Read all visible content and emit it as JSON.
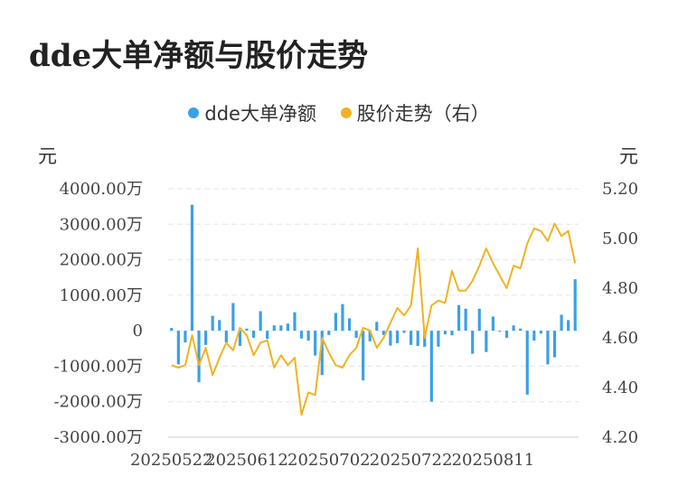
{
  "chart_data": {
    "type": "bar+line",
    "title": "dde大单净额与股价走势",
    "legend": [
      "dde大单净额",
      "股价走势（右）"
    ],
    "colors": {
      "bar": "#3ba0e6",
      "line": "#f0b323"
    },
    "left_unit": "元",
    "right_unit": "元",
    "left_ticks": [
      "4000.00万",
      "3000.00万",
      "2000.00万",
      "1000.00万",
      "0",
      "-1000.00万",
      "-2000.00万",
      "-3000.00万"
    ],
    "left_ylim": [
      -3000,
      4000
    ],
    "right_ticks": [
      "5.20",
      "5.00",
      "4.80",
      "4.60",
      "4.40",
      "4.20"
    ],
    "right_ylim": [
      4.2,
      5.2
    ],
    "x_tick_labels": [
      "20250522",
      "20250612",
      "20250702",
      "20250722",
      "20250811"
    ],
    "x_tick_index": [
      0,
      11,
      23,
      35,
      47
    ],
    "dde_values": [
      80,
      -950,
      -330,
      3550,
      -1450,
      -400,
      420,
      300,
      -330,
      780,
      -430,
      60,
      -200,
      550,
      -230,
      150,
      150,
      200,
      520,
      -220,
      -280,
      -700,
      -1250,
      -120,
      500,
      750,
      350,
      -200,
      -1400,
      -300,
      250,
      -120,
      -420,
      -350,
      -60,
      -400,
      -430,
      -450,
      -2000,
      -450,
      -100,
      -130,
      720,
      620,
      -650,
      620,
      -600,
      400,
      -30,
      -200,
      150,
      60,
      -1800,
      -280,
      -80,
      -950,
      -750,
      450,
      300,
      1450
    ],
    "price_values": [
      4.49,
      4.48,
      4.49,
      4.61,
      4.49,
      4.56,
      4.45,
      4.52,
      4.58,
      4.55,
      4.64,
      4.61,
      4.53,
      4.58,
      4.59,
      4.48,
      4.53,
      4.49,
      4.52,
      4.29,
      4.38,
      4.37,
      4.6,
      4.54,
      4.49,
      4.48,
      4.53,
      4.56,
      4.64,
      4.63,
      4.56,
      4.6,
      4.66,
      4.72,
      4.69,
      4.73,
      4.96,
      4.6,
      4.73,
      4.75,
      4.74,
      4.87,
      4.79,
      4.79,
      4.83,
      4.89,
      4.96,
      4.9,
      4.85,
      4.8,
      4.89,
      4.88,
      4.98,
      5.04,
      5.03,
      4.99,
      5.06,
      5.01,
      5.03,
      4.9
    ]
  }
}
